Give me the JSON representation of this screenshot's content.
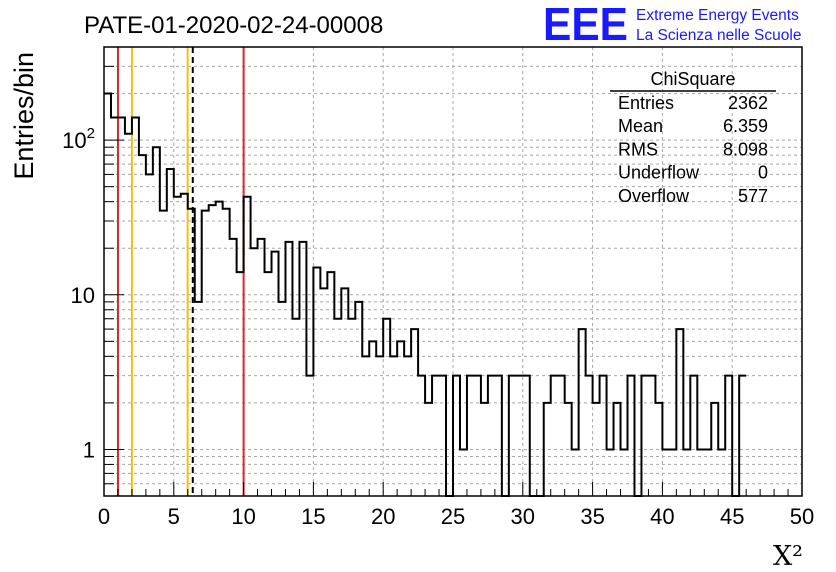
{
  "chart_data": {
    "type": "histogram",
    "title": "PATE-01-2020-02-24-00008",
    "xlabel": "X²",
    "ylabel": "Entries/bin",
    "y_scale": "log",
    "xlim": [
      0,
      50
    ],
    "ylim": [
      0.5,
      400
    ],
    "x_ticks": [
      0,
      5,
      10,
      15,
      20,
      25,
      30,
      35,
      40,
      45,
      50
    ],
    "y_tick_labels": [
      {
        "value": 1,
        "label": "1"
      },
      {
        "value": 10,
        "label": "10"
      },
      {
        "value": 100,
        "label": "10²"
      }
    ],
    "grid": true,
    "bin_width": 0.5,
    "bin_values": [
      200,
      140,
      140,
      110,
      140,
      80,
      60,
      90,
      35,
      65,
      43,
      45,
      36,
      9,
      35,
      38,
      40,
      36,
      23,
      14,
      43,
      20,
      23,
      14,
      19,
      9,
      22,
      7,
      22,
      3,
      15,
      11,
      14,
      7,
      11,
      7,
      9,
      4,
      5,
      4,
      7,
      4,
      5,
      4,
      6,
      3,
      2,
      3,
      3,
      0,
      3,
      1,
      3,
      3,
      2,
      3,
      3,
      0,
      3,
      3,
      3,
      0,
      0,
      2,
      3,
      3,
      2,
      1,
      6,
      3,
      2,
      3,
      1,
      2,
      1,
      3,
      0,
      3,
      3,
      2,
      1,
      1,
      6,
      1,
      3,
      1,
      1,
      2,
      1,
      3,
      0,
      3
    ],
    "vertical_lines": [
      {
        "x": 1,
        "color": "#d9262a",
        "style": "solid"
      },
      {
        "x": 2,
        "color": "#f2c018",
        "style": "solid"
      },
      {
        "x": 5.991,
        "color": "#f2c018",
        "style": "solid"
      },
      {
        "x": 6.359,
        "color": "#000000",
        "style": "dashed"
      },
      {
        "x": 10,
        "color": "#d9262a",
        "style": "solid"
      }
    ],
    "stats_box": {
      "title": "ChiSquare",
      "rows": [
        {
          "label": "Entries",
          "value": "2362"
        },
        {
          "label": "Mean",
          "value": "6.359"
        },
        {
          "label": "RMS",
          "value": "8.098"
        },
        {
          "label": "Underflow",
          "value": "0"
        },
        {
          "label": "Overflow",
          "value": "577"
        }
      ]
    }
  },
  "logo": {
    "mark": "EEE",
    "line1": "Extreme Energy Events",
    "line2": "La Scienza nelle Scuole",
    "color": "#1a1aff"
  }
}
